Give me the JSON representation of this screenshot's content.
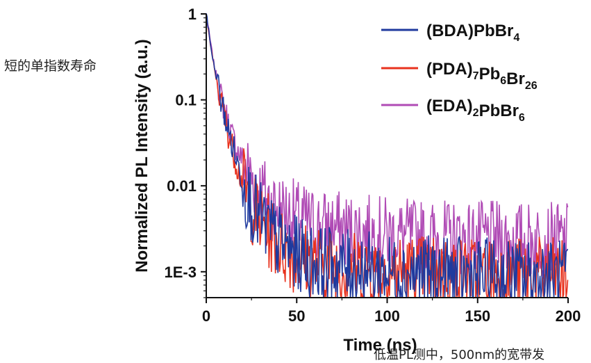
{
  "side_text": "短的单指数寿命",
  "bottom_text": "低温PL测中，500nm的宽带发",
  "chart_data": {
    "type": "line",
    "title": "",
    "xlabel": "Time (ns)",
    "ylabel": "Normalized PL Intensity (a.u.)",
    "xlim": [
      0,
      200
    ],
    "ylim": [
      0.0005,
      1
    ],
    "yscale": "log",
    "legend_position": "top-right",
    "grid": false,
    "x_ticks": [
      "0",
      "50",
      "100",
      "150",
      "200"
    ],
    "y_ticks": [
      "1",
      "0.1",
      "0.01",
      "1E-3"
    ],
    "series": [
      {
        "name_parts": [
          [
            "(BDA)PbBr",
            false
          ],
          [
            "4",
            true
          ]
        ],
        "color": "#1f3a9e",
        "x": [
          0,
          1,
          2,
          3,
          4,
          5,
          6,
          7,
          8,
          10,
          12,
          14,
          16,
          18,
          20,
          22,
          24,
          26,
          30,
          35,
          40,
          50,
          60,
          80,
          100,
          120,
          150,
          200
        ],
        "y": [
          1,
          0.72,
          0.5,
          0.36,
          0.27,
          0.21,
          0.17,
          0.13,
          0.1,
          0.07,
          0.045,
          0.032,
          0.023,
          0.016,
          0.012,
          0.009,
          0.007,
          0.0055,
          0.004,
          0.003,
          0.0022,
          0.0016,
          0.0013,
          0.0011,
          0.001,
          0.00095,
          0.0009,
          0.00085
        ]
      },
      {
        "name_parts": [
          [
            "(PDA)",
            false
          ],
          [
            "7",
            true
          ],
          [
            "Pb",
            false
          ],
          [
            "6",
            true
          ],
          [
            "Br",
            false
          ],
          [
            "26",
            true
          ]
        ],
        "color": "#e8321e",
        "x": [
          0,
          1,
          2,
          3,
          4,
          5,
          6,
          7,
          8,
          10,
          12,
          14,
          16,
          18,
          20,
          22,
          24,
          26,
          30,
          35,
          40,
          50,
          60,
          80,
          100,
          120,
          150,
          200
        ],
        "y": [
          1,
          0.7,
          0.48,
          0.35,
          0.26,
          0.2,
          0.16,
          0.125,
          0.095,
          0.065,
          0.042,
          0.03,
          0.021,
          0.015,
          0.011,
          0.0085,
          0.0066,
          0.0052,
          0.0038,
          0.0028,
          0.0021,
          0.0015,
          0.0013,
          0.0011,
          0.001,
          0.001,
          0.00095,
          0.0009
        ]
      },
      {
        "name_parts": [
          [
            "(EDA)",
            false
          ],
          [
            "2",
            true
          ],
          [
            "PbBr",
            false
          ],
          [
            "6",
            true
          ]
        ],
        "color": "#b04bb5",
        "x": [
          0,
          1,
          2,
          3,
          4,
          5,
          6,
          7,
          8,
          10,
          12,
          14,
          16,
          18,
          20,
          22,
          24,
          26,
          30,
          35,
          40,
          50,
          60,
          80,
          100,
          120,
          150,
          200
        ],
        "y": [
          1,
          0.72,
          0.52,
          0.38,
          0.28,
          0.22,
          0.18,
          0.14,
          0.11,
          0.08,
          0.055,
          0.04,
          0.03,
          0.024,
          0.02,
          0.017,
          0.014,
          0.012,
          0.009,
          0.0068,
          0.0055,
          0.0042,
          0.0035,
          0.003,
          0.0027,
          0.0025,
          0.0024,
          0.0023
        ]
      }
    ]
  }
}
